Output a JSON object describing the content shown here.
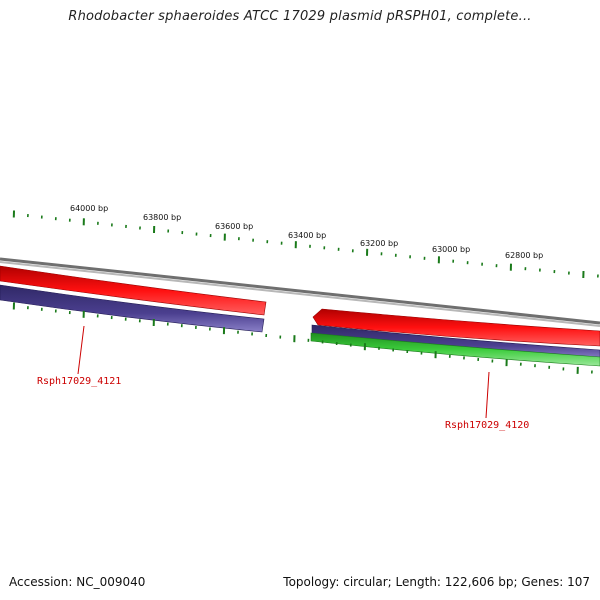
{
  "title": "Rhodobacter sphaeroides ATCC 17029 plasmid pRSPH01, complete...",
  "footer": {
    "accession": "Accession: NC_009040",
    "summary": "Topology: circular; Length: 122,606 bp; Genes: 107"
  },
  "tick_labels": [
    "64000 bp",
    "63800 bp",
    "63600 bp",
    "63400 bp",
    "63200 bp",
    "63000 bp",
    "62800 bp"
  ],
  "genes": [
    {
      "name": "Rsph17029_4121"
    },
    {
      "name": "Rsph17029_4120"
    }
  ],
  "colors": {
    "backbone": "#808080",
    "forward_cds": "#ff0000",
    "reverse_track": "#4b3f8f",
    "green_track": "#3ccc3c",
    "tick": "#1a7a1a",
    "label": "#cc0000"
  }
}
